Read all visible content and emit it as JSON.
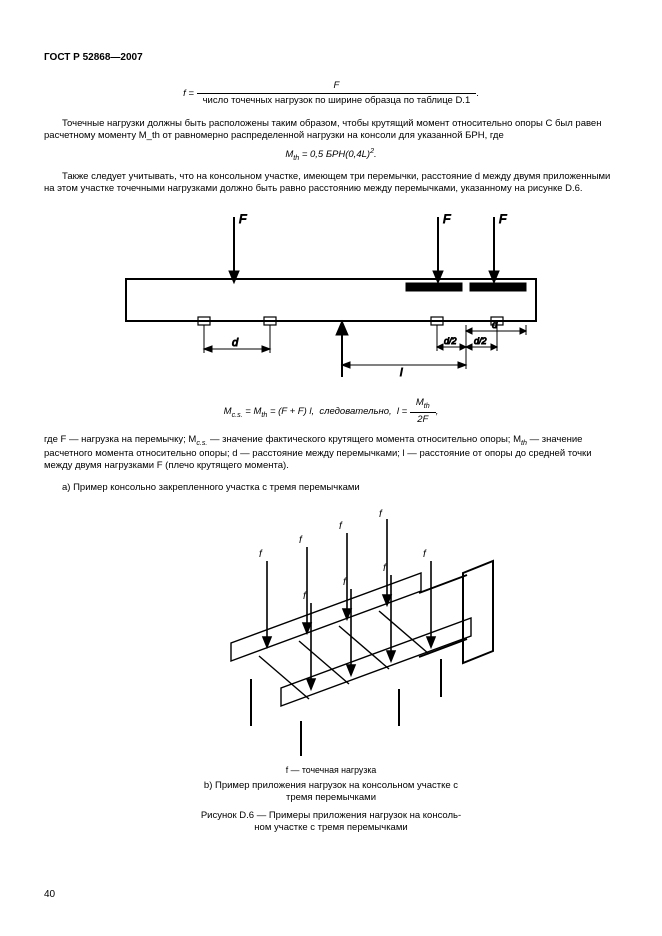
{
  "header": "ГОСТ Р 52868—2007",
  "formula_f": {
    "lhs": "f =",
    "numerator": "F",
    "denominator": "число точечных нагрузок по ширине образца по таблице D.1",
    "trailing": "."
  },
  "para1": "Точечные нагрузки должны быть расположены таким образом, чтобы крутящий момент относительно опоры C был равен расчетному моменту M_th от равномерно распределенной нагрузки на консоли для указанной БРН, где",
  "equation1_html": "M<sub>th</sub> = 0,5 БРН(0,4L)<sup>2</sup>.",
  "para2": "Также следует учитывать, что на консольном участке, имеющем три перемычки, расстояние d между двумя приложенными на этом участке точечными нагрузками должно быть равно расстоянию между перемычками, указанному на рисунке D.6.",
  "diagram1": {
    "labels": {
      "F": "F",
      "d": "d",
      "l": "l",
      "d12": "d/2"
    },
    "styling": {
      "stroke": "#000000",
      "fill_beam": "#ffffff",
      "line_w": 2,
      "thin_w": 1
    }
  },
  "equation2_pre_html": "M<sub>c.s.</sub> = M<sub>th</sub> = (F + F) l,&nbsp; следовательно,&nbsp; l =",
  "equation2_frac": {
    "top": "M_th",
    "bot": "2F"
  },
  "equation2_trailing": ",",
  "where_html": "где F — нагрузка на перемычку; M<sub>c.s.</sub> — значение фактического крутящего момента относительно опоры; M<sub>th</sub> — значение расчетного момента относительно опоры; d — расстояние между перемычками; l — расстояние от опоры до средней точки между двумя нагрузками F (плечо крутящего момента).",
  "caption_a": "а) Пример консольно закрепленного участка с тремя перемычками",
  "diagram2": {
    "label_f": "f",
    "styling": {
      "stroke": "#000000",
      "fill": "#ffffff",
      "line_w": 1.4,
      "thin_w": 0.9
    }
  },
  "fig2_legend": "f — точечная нагрузка",
  "caption_b_line1": "b)  Пример приложения нагрузок на консольном участке с",
  "caption_b_line2": "тремя перемычками",
  "fig_title_line1": "Рисунок D.6 — Примеры приложения нагрузок на консоль-",
  "fig_title_line2": "ном участке с тремя перемычками",
  "page_number": "40"
}
